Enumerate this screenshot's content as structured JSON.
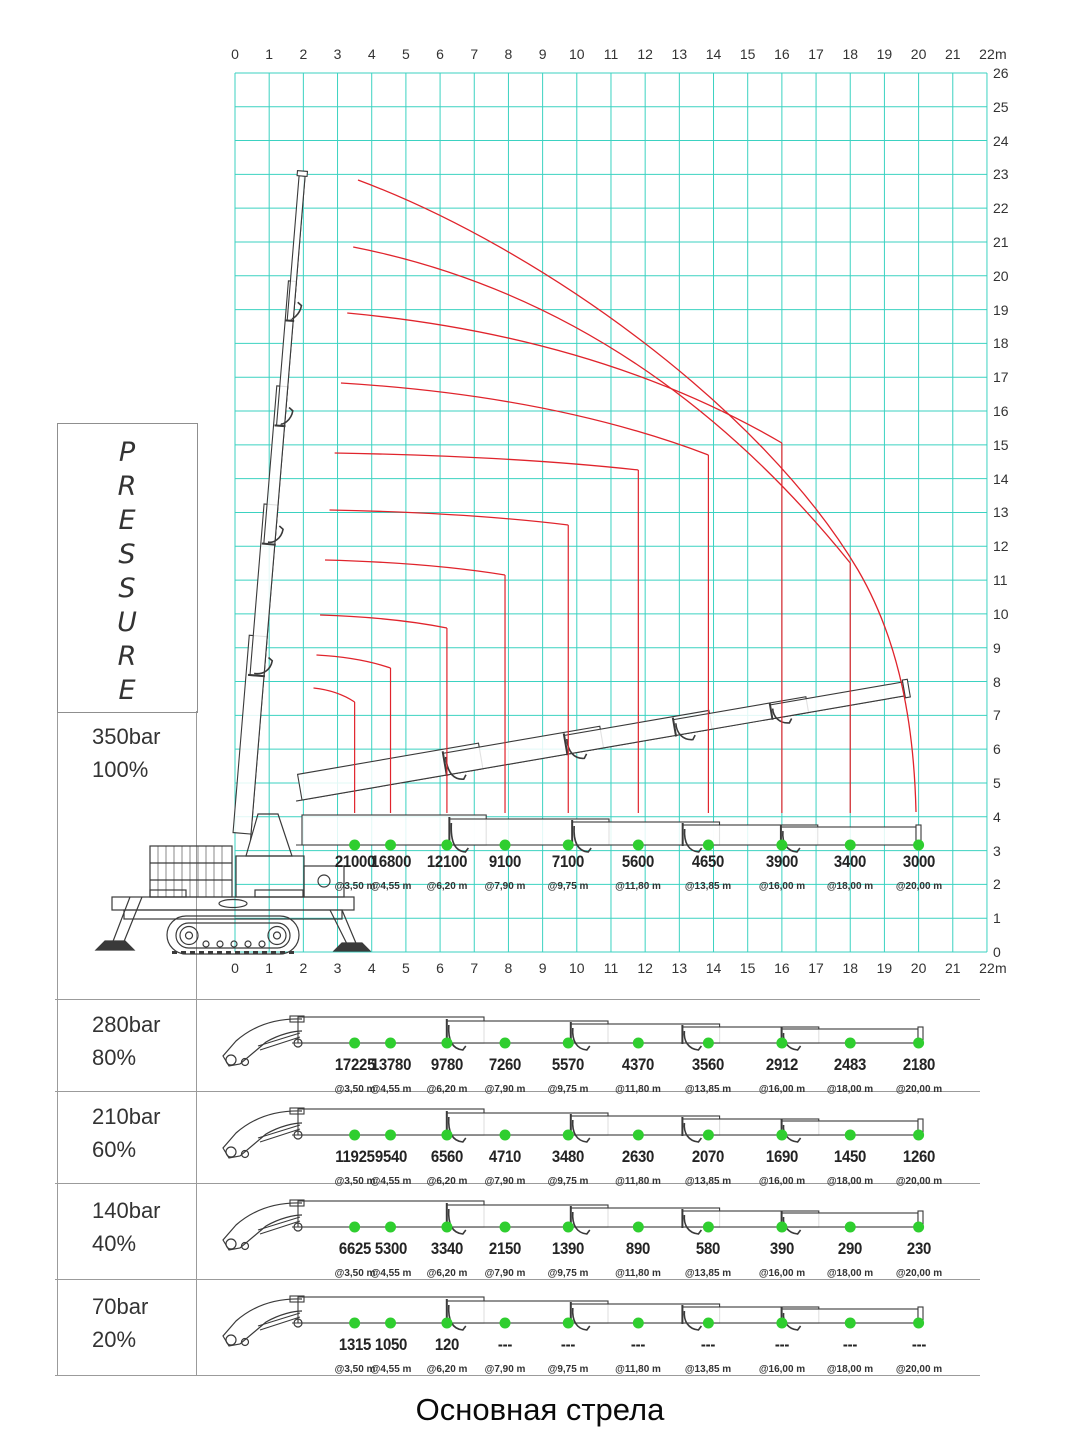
{
  "title": "Основная стрела",
  "pressure_box": {
    "word": "PRESSURE",
    "letters": [
      "P",
      "R",
      "E",
      "S",
      "S",
      "U",
      "R",
      "E"
    ]
  },
  "axes": {
    "unit_label": "m",
    "x_min": 0,
    "x_max": 22,
    "y_min": 0,
    "y_max": 26
  },
  "chart_data": {
    "type": "table",
    "title": "Основная стрела",
    "grid": true,
    "x_axis": {
      "unit": "m",
      "min": 0,
      "max": 22,
      "tick_step": 1
    },
    "y_axis": {
      "unit": "m",
      "min": 0,
      "max": 26,
      "tick_step": 1
    },
    "x_ticks": [
      0,
      1,
      2,
      3,
      4,
      5,
      6,
      7,
      8,
      9,
      10,
      11,
      12,
      13,
      14,
      15,
      16,
      17,
      18,
      19,
      20,
      21,
      22
    ],
    "y_ticks": [
      0,
      1,
      2,
      3,
      4,
      5,
      6,
      7,
      8,
      9,
      10,
      11,
      12,
      13,
      14,
      15,
      16,
      17,
      18,
      19,
      20,
      21,
      22,
      23,
      24,
      25,
      26
    ],
    "radii_m": [
      3.5,
      4.55,
      6.2,
      7.9,
      9.75,
      11.8,
      13.85,
      16.0,
      18.0,
      20.0
    ],
    "radius_labels": [
      "@3,50 m",
      "@4,55 m",
      "@6,20 m",
      "@7,90 m",
      "@9,75 m",
      "@11,80 m",
      "@13,85 m",
      "@16,00 m",
      "@18,00 m",
      "@20,00 m"
    ],
    "series": [
      {
        "pressure": "350bar",
        "percent": "100%",
        "capacities_kg": [
          "21000",
          "16800",
          "12100",
          "9100",
          "7100",
          "5600",
          "4650",
          "3900",
          "3400",
          "3000"
        ]
      },
      {
        "pressure": "280bar",
        "percent": "80%",
        "capacities_kg": [
          "17225",
          "13780",
          "9780",
          "7260",
          "5570",
          "4370",
          "3560",
          "2912",
          "2483",
          "2180"
        ]
      },
      {
        "pressure": "210bar",
        "percent": "60%",
        "capacities_kg": [
          "11925",
          "9540",
          "6560",
          "4710",
          "3480",
          "2630",
          "2070",
          "1690",
          "1450",
          "1260"
        ]
      },
      {
        "pressure": "140bar",
        "percent": "40%",
        "capacities_kg": [
          "6625",
          "5300",
          "3340",
          "2150",
          "1390",
          "890",
          "580",
          "390",
          "290",
          "230"
        ]
      },
      {
        "pressure": "70bar",
        "percent": "20%",
        "capacities_kg": [
          "1315",
          "1050",
          "120",
          "---",
          "---",
          "---",
          "---",
          "---",
          "---",
          "---"
        ]
      }
    ]
  },
  "colors": {
    "grid": "#3bd2c1",
    "curve": "#e0242c",
    "marker": "#2fce2f",
    "line_art": "#3a3a3a",
    "border": "#9b9b9b",
    "text": "#2e2e2e"
  }
}
